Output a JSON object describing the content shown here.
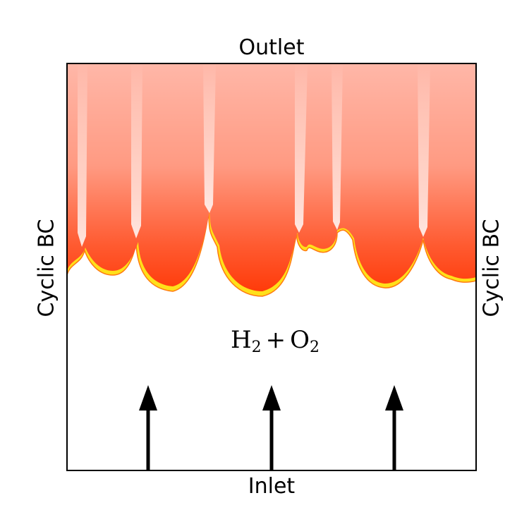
{
  "labels": {
    "top": "Outlet",
    "bottom": "Inlet",
    "left": "Cyclic BC",
    "right": "Cyclic BC"
  },
  "mixture": {
    "species_1": "H",
    "subscript_1": "2",
    "operator": "+",
    "species_2": "O",
    "subscript_2": "2"
  },
  "colors": {
    "burnt_gas": "#ffaf9e",
    "flame_core": "#ff3b0a",
    "flame_edge": "#ffe01a",
    "fresh_gas": "#ffffff",
    "arrow": "#000000",
    "frame": "#000000"
  },
  "icons": [
    "arrow-up-icon",
    "arrow-up-icon",
    "arrow-up-icon"
  ]
}
